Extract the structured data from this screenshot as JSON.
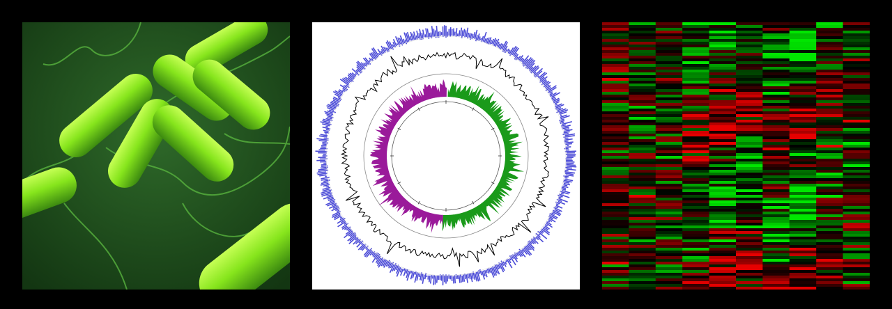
{
  "panels": [
    {
      "kind": "bacteria-illustration",
      "colors": {
        "background": "#1f4a1c",
        "cell": "#7be01d",
        "flagella": "#4fa63a"
      }
    },
    {
      "kind": "circular-genome-map",
      "colors": {
        "outer_ring": "#2b2bd0",
        "track_line": "#000000",
        "gc_skew_positive": "#1a9a1a",
        "gc_skew_negative": "#9a1a9a"
      }
    },
    {
      "kind": "expression-heatmap",
      "colors": {
        "up": "#e00000",
        "down": "#00d000",
        "neutral": "#000000"
      }
    }
  ]
}
